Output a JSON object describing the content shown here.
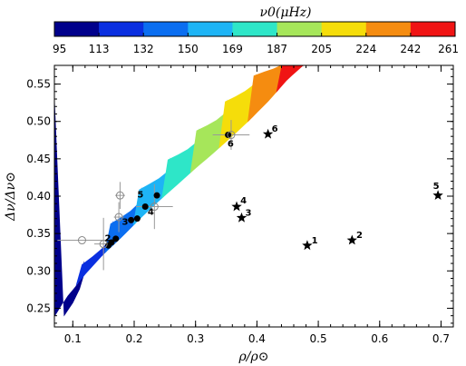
{
  "chart_data": {
    "type": "scatter",
    "colorbar": {
      "title": "ν0(μHz)",
      "ticks": [
        "95",
        "113",
        "132",
        "150",
        "169",
        "187",
        "205",
        "224",
        "242",
        "261"
      ],
      "colors": [
        "#00008b",
        "#0a2fe0",
        "#0b6ef0",
        "#1eb4f5",
        "#2ee6c8",
        "#a6e65a",
        "#f5dd0a",
        "#f58c10",
        "#f01414"
      ]
    },
    "xlabel": "ρ/ρ⊙",
    "ylabel": "Δν/Δν⊙",
    "xlim": [
      0.07,
      0.72
    ],
    "ylim": [
      0.225,
      0.575
    ],
    "xticks": [
      "0.1",
      "0.2",
      "0.3",
      "0.4",
      "0.5",
      "0.6",
      "0.7"
    ],
    "xtick_values": [
      0.1,
      0.2,
      0.3,
      0.4,
      0.5,
      0.6,
      0.7
    ],
    "yticks": [
      "0.25",
      "0.30",
      "0.35",
      "0.40",
      "0.45",
      "0.50",
      "0.55"
    ],
    "ytick_values": [
      0.25,
      0.3,
      0.35,
      0.4,
      0.45,
      0.5,
      0.55
    ],
    "grid": false,
    "band_colors": [
      "#00008b",
      "#0a2fe0",
      "#0b6ef0",
      "#1eb4f5",
      "#2ee6c8",
      "#a6e65a",
      "#f5dd0a",
      "#f58c10",
      "#f01414"
    ],
    "series": [
      {
        "marker": "filled-circle",
        "points": [
          {
            "x": 0.158,
            "y": 0.334
          },
          {
            "x": 0.163,
            "y": 0.338
          },
          {
            "x": 0.17,
            "y": 0.343
          },
          {
            "x": 0.195,
            "y": 0.368
          },
          {
            "x": 0.205,
            "y": 0.37
          },
          {
            "x": 0.218,
            "y": 0.386
          },
          {
            "x": 0.237,
            "y": 0.401
          },
          {
            "x": 0.353,
            "y": 0.482
          }
        ]
      },
      {
        "marker": "open-circle-errorbar",
        "points": [
          {
            "x": 0.115,
            "y": 0.341,
            "xerr": 0.04,
            "yerr": 0.0
          },
          {
            "x": 0.15,
            "y": 0.336,
            "xerr": 0.015,
            "yerr": 0.035
          },
          {
            "x": 0.175,
            "y": 0.372,
            "xerr": 0.008,
            "yerr": 0.02
          },
          {
            "x": 0.177,
            "y": 0.401,
            "xerr": 0.008,
            "yerr": 0.018
          },
          {
            "x": 0.233,
            "y": 0.386,
            "xerr": 0.03,
            "yerr": 0.03
          },
          {
            "x": 0.358,
            "y": 0.482,
            "xerr": 0.03,
            "yerr": 0.02
          }
        ]
      },
      {
        "marker": "star",
        "points": [
          {
            "x": 0.367,
            "y": 0.386
          },
          {
            "x": 0.375,
            "y": 0.371
          },
          {
            "x": 0.418,
            "y": 0.483
          },
          {
            "x": 0.482,
            "y": 0.334
          },
          {
            "x": 0.555,
            "y": 0.341
          },
          {
            "x": 0.695,
            "y": 0.401
          }
        ]
      }
    ],
    "annotations": [
      {
        "text": "2",
        "x": 0.152,
        "y": 0.34
      },
      {
        "text": "3",
        "x": 0.18,
        "y": 0.362
      },
      {
        "text": "4",
        "x": 0.222,
        "y": 0.375
      },
      {
        "text": "5",
        "x": 0.205,
        "y": 0.398
      },
      {
        "text": "6",
        "x": 0.352,
        "y": 0.466
      },
      {
        "text": "1",
        "x": 0.489,
        "y": 0.337
      },
      {
        "text": "2",
        "x": 0.562,
        "y": 0.344
      },
      {
        "text": "3",
        "x": 0.381,
        "y": 0.374
      },
      {
        "text": "4",
        "x": 0.373,
        "y": 0.39
      },
      {
        "text": "5",
        "x": 0.687,
        "y": 0.41
      },
      {
        "text": "6",
        "x": 0.424,
        "y": 0.486
      }
    ]
  }
}
